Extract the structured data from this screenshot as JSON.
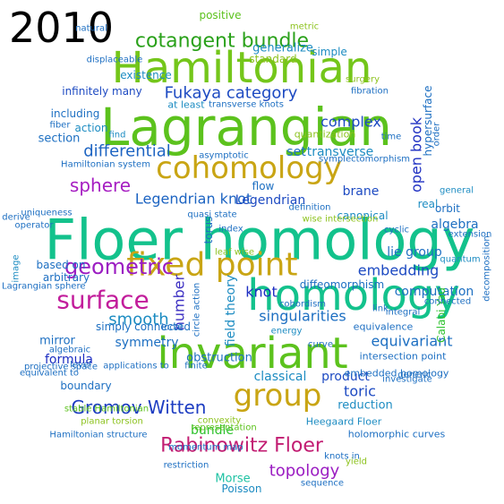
{
  "year_label": "2010",
  "word_cloud": {
    "words": [
      {
        "text": "Floer homology",
        "color": "#13c28c"
      },
      {
        "text": "Lagrangian",
        "color": "#5cc21d"
      },
      {
        "text": "Hamiltonian",
        "color": "#74c61a"
      },
      {
        "text": "homology",
        "color": "#13c28c"
      },
      {
        "text": "invariant",
        "color": "#5cc21d"
      },
      {
        "text": "fixed point",
        "color": "#c9a514"
      },
      {
        "text": "cohomology",
        "color": "#c9a514"
      },
      {
        "text": "group",
        "color": "#c9a514"
      },
      {
        "text": "Rabinowitz Floer",
        "color": "#c21d72"
      },
      {
        "text": "cotangent bundle",
        "color": "#2aa11a"
      },
      {
        "text": "surface",
        "color": "#c21d9b"
      },
      {
        "text": "geometric",
        "color": "#9b1dc2"
      },
      {
        "text": "sphere",
        "color": "#a61dc2"
      },
      {
        "text": "Gromov Witten",
        "color": "#1d3dc2"
      },
      {
        "text": "topology",
        "color": "#9b1dc2"
      },
      {
        "text": "Fukaya category",
        "color": "#1d4ac2"
      },
      {
        "text": "Legendrian knot",
        "color": "#1d64c2"
      },
      {
        "text": "differential",
        "color": "#1d64c2"
      },
      {
        "text": "number",
        "color": "#3b2ec2"
      },
      {
        "text": "smooth",
        "color": "#1d8cc2"
      },
      {
        "text": "embedding",
        "color": "#1d4ac2"
      },
      {
        "text": "singularities",
        "color": "#1d6fc2"
      },
      {
        "text": "complex",
        "color": "#1d4ac2"
      },
      {
        "text": "brane",
        "color": "#1d4ac2"
      },
      {
        "text": "open book",
        "color": "#1d2ec2"
      },
      {
        "text": "equivariant",
        "color": "#1d6fc2"
      },
      {
        "text": "toric",
        "color": "#1d4ac2"
      },
      {
        "text": "knot",
        "color": "#1d2ec2"
      },
      {
        "text": "mirror",
        "color": "#1d6fc2"
      },
      {
        "text": "formula",
        "color": "#1d2ec2"
      },
      {
        "text": "symmetry",
        "color": "#1d6fc2"
      },
      {
        "text": "field theory",
        "color": "#1d8cc2"
      },
      {
        "text": "computation",
        "color": "#1d6fc2"
      },
      {
        "text": "Legendrian",
        "color": "#1d4ac2"
      },
      {
        "text": "product",
        "color": "#1d4ac2"
      },
      {
        "text": "classical",
        "color": "#1d8cc2"
      },
      {
        "text": "bundle",
        "color": "#2ec22e"
      },
      {
        "text": "Morse",
        "color": "#1dc2a3"
      },
      {
        "text": "generalize",
        "color": "#1d8cc2"
      },
      {
        "text": "standard",
        "color": "#8cc21d"
      },
      {
        "text": "Poisson",
        "color": "#1d8cc2"
      },
      {
        "text": "positive",
        "color": "#5cc21d"
      },
      {
        "text": "reduction",
        "color": "#1d8cc2"
      },
      {
        "text": "lie group",
        "color": "#1d6fc2"
      },
      {
        "text": "diffeomorphism",
        "color": "#1d6fc2"
      },
      {
        "text": "transverse",
        "color": "#1d8cc2"
      },
      {
        "text": "obstruction",
        "color": "#1d6fc2"
      },
      {
        "text": "boundary",
        "color": "#1d6fc2"
      },
      {
        "text": "simply connected",
        "color": "#1d6fc2"
      },
      {
        "text": "section",
        "color": "#1d6fc2"
      },
      {
        "text": "including",
        "color": "#1d6fc2"
      },
      {
        "text": "action",
        "color": "#1d8cc2"
      },
      {
        "text": "infinitely many",
        "color": "#1d4ac2"
      },
      {
        "text": "set",
        "color": "#1d6fc2"
      },
      {
        "text": "canonical",
        "color": "#1d8cc2"
      },
      {
        "text": "real",
        "color": "#1d8cc2"
      },
      {
        "text": "algebra",
        "color": "#1d6fc2"
      },
      {
        "text": "orbit",
        "color": "#1d6fc2"
      },
      {
        "text": "flow",
        "color": "#1d6fc2"
      },
      {
        "text": "quantization",
        "color": "#8cc21d"
      },
      {
        "text": "hypersurface",
        "color": "#1d6fc2"
      },
      {
        "text": "based on",
        "color": "#1d6fc2"
      },
      {
        "text": "arbitrary",
        "color": "#1d6fc2"
      },
      {
        "text": "existence",
        "color": "#1d8cc2"
      },
      {
        "text": "simple",
        "color": "#1d8cc2"
      },
      {
        "text": "torus",
        "color": "#1d6fc2"
      },
      {
        "text": "Calabi Yau",
        "color": "#2ec22e"
      },
      {
        "text": "embedded homology",
        "color": "#1d6fc2"
      },
      {
        "text": "Heegaard Floer",
        "color": "#1d8cc2"
      },
      {
        "text": "holomorphic curves",
        "color": "#1d6fc2"
      },
      {
        "text": "intersection point",
        "color": "#1d6fc2"
      },
      {
        "text": "equivalence",
        "color": "#1d6fc2"
      },
      {
        "text": "planar torsion",
        "color": "#8cc21d"
      },
      {
        "text": "representation",
        "color": "#5cc21d"
      },
      {
        "text": "Hamiltonian structure",
        "color": "#1d6fc2"
      },
      {
        "text": "stable Hamiltonian",
        "color": "#5cc21d"
      },
      {
        "text": "convexity",
        "color": "#8cc21d"
      },
      {
        "text": "momentum map",
        "color": "#1d6fc2"
      },
      {
        "text": "asymptotic",
        "color": "#1d6fc2"
      },
      {
        "text": "metric",
        "color": "#8cc21d"
      },
      {
        "text": "transverse knots",
        "color": "#1d6fc2"
      },
      {
        "text": "at least",
        "color": "#1d8cc2"
      },
      {
        "text": "surgery",
        "color": "#8cc21d"
      },
      {
        "text": "fibration",
        "color": "#1d6fc2"
      },
      {
        "text": "sequence",
        "color": "#1d6fc2"
      },
      {
        "text": "restriction",
        "color": "#1d6fc2"
      },
      {
        "text": "link",
        "color": "#1d6fc2"
      },
      {
        "text": "quantum",
        "color": "#1d8cc2"
      },
      {
        "text": "connected",
        "color": "#1d6fc2"
      },
      {
        "text": "integral",
        "color": "#1d6fc2"
      },
      {
        "text": "general",
        "color": "#1d8cc2"
      },
      {
        "text": "order",
        "color": "#1d6fc2"
      },
      {
        "text": "time",
        "color": "#1d6fc2"
      },
      {
        "text": "projective space",
        "color": "#1d6fc2"
      },
      {
        "text": "derive",
        "color": "#1d6fc2"
      },
      {
        "text": "uniqueness",
        "color": "#1d6fc2"
      },
      {
        "text": "Lagrangian sphere",
        "color": "#1d6fc2"
      },
      {
        "text": "operator",
        "color": "#1d6fc2"
      },
      {
        "text": "image",
        "color": "#1d8cc2"
      },
      {
        "text": "leaf wise",
        "color": "#8cc21d"
      },
      {
        "text": "index",
        "color": "#1d6fc2"
      },
      {
        "text": "circle action",
        "color": "#1d6fc2"
      },
      {
        "text": "applications to",
        "color": "#1d6fc2"
      },
      {
        "text": "equivalent to",
        "color": "#1d6fc2"
      },
      {
        "text": "level",
        "color": "#1d6fc2"
      },
      {
        "text": "investigate",
        "color": "#1d6fc2"
      },
      {
        "text": "generic",
        "color": "#1d6fc2"
      },
      {
        "text": "finite",
        "color": "#1d6fc2"
      },
      {
        "text": "cobordism",
        "color": "#1d6fc2"
      },
      {
        "text": "energy",
        "color": "#1d8cc2"
      },
      {
        "text": "curve",
        "color": "#1d6fc2"
      },
      {
        "text": "displaceable",
        "color": "#1d6fc2"
      },
      {
        "text": "find",
        "color": "#1d8cc2"
      },
      {
        "text": "wise intersection",
        "color": "#8cc21d"
      },
      {
        "text": "definition",
        "color": "#1d6fc2"
      },
      {
        "text": "symplectomorphism",
        "color": "#1d6fc2"
      },
      {
        "text": "cyclic",
        "color": "#1d6fc2"
      },
      {
        "text": "local",
        "color": "#1d6fc2"
      },
      {
        "text": "fiber",
        "color": "#1d6fc2"
      },
      {
        "text": "decomposition",
        "color": "#1d6fc2"
      },
      {
        "text": "extension",
        "color": "#1d6fc2"
      },
      {
        "text": "natural",
        "color": "#1d6fc2"
      },
      {
        "text": "algebraic",
        "color": "#1d6fc2"
      },
      {
        "text": "Hamiltonian system",
        "color": "#1d6fc2"
      },
      {
        "text": "quasi state",
        "color": "#1d6fc2"
      },
      {
        "text": "knots in",
        "color": "#1d6fc2"
      },
      {
        "text": "yield",
        "color": "#8cc21d"
      }
    ]
  }
}
